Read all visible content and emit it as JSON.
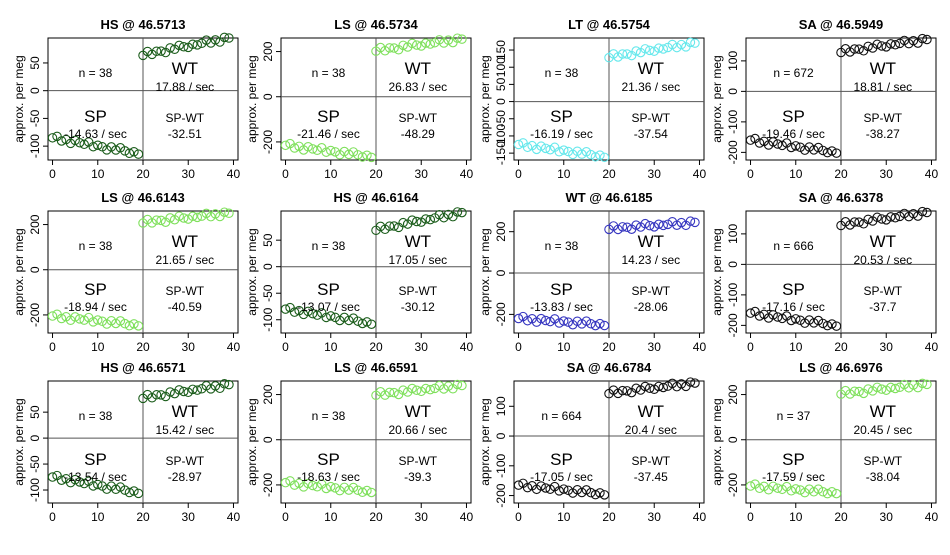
{
  "figure": {
    "shared": {
      "ylabel": "approx. per meg",
      "x_ticks": [
        0,
        10,
        20,
        30,
        40
      ],
      "xlim": [
        -1,
        41
      ],
      "sp_label": "SP",
      "wt_label": "WT",
      "diff_label": "SP-WT",
      "rate_unit": " / sec",
      "n_prefix": "n = ",
      "point_style": "open circles",
      "grid": "crosshair at x=20 and y=0"
    },
    "chart_data": [
      {
        "type": "scatter",
        "title": "HS @ 46.5713",
        "n": "38",
        "sp_rate": "-14.63",
        "wt_rate": "17.88",
        "diff": "-32.51",
        "color": "#1a5c1a",
        "ylim": [
          -125,
          95
        ],
        "yticks": [
          -100,
          -50,
          0,
          50
        ],
        "sp_start": -85,
        "sp_end": -113,
        "wt_start": 65,
        "wt_end": 95
      },
      {
        "type": "scatter",
        "title": "LS @ 46.5734",
        "n": "38",
        "sp_rate": "-21.46",
        "wt_rate": "26.83",
        "diff": "-48.29",
        "color": "#7fe05c",
        "ylim": [
          -280,
          260
        ],
        "yticks": [
          -200,
          0,
          200
        ],
        "sp_start": -215,
        "sp_end": -265,
        "wt_start": 205,
        "wt_end": 255
      },
      {
        "type": "scatter",
        "title": "LT @ 46.5754",
        "n": "38",
        "sp_rate": "-16.19",
        "wt_rate": "21.36",
        "diff": "-37.54",
        "color": "#66e8ec",
        "ylim": [
          -170,
          185
        ],
        "yticks": [
          -150,
          -100,
          -50,
          0,
          50,
          100,
          150
        ],
        "sp_start": -125,
        "sp_end": -160,
        "wt_start": 130,
        "wt_end": 170
      },
      {
        "type": "scatter",
        "title": "SA @ 46.5949",
        "n": "672",
        "sp_rate": "-19.46",
        "wt_rate": "18.81",
        "diff": "-38.27",
        "color": "#111111",
        "ylim": [
          -225,
          175
        ],
        "yticks": [
          -200,
          -100,
          0,
          100
        ],
        "sp_start": -160,
        "sp_end": -200,
        "wt_start": 130,
        "wt_end": 170
      },
      {
        "type": "scatter",
        "title": "LS @ 46.6143",
        "n": "38",
        "sp_rate": "-18.94",
        "wt_rate": "21.65",
        "diff": "-40.59",
        "color": "#7fe05c",
        "ylim": [
          -280,
          260
        ],
        "yticks": [
          -200,
          0,
          200
        ],
        "sp_start": -205,
        "sp_end": -245,
        "wt_start": 210,
        "wt_end": 250
      },
      {
        "type": "scatter",
        "title": "HS @ 46.6164",
        "n": "38",
        "sp_rate": "-13.07",
        "wt_rate": "17.05",
        "diff": "-30.12",
        "color": "#1a5c1a",
        "ylim": [
          -125,
          105
        ],
        "yticks": [
          -100,
          -50,
          0,
          50
        ],
        "sp_start": -80,
        "sp_end": -107,
        "wt_start": 70,
        "wt_end": 102
      },
      {
        "type": "scatter",
        "title": "WT @ 46.6185",
        "n": "38",
        "sp_rate": "-13.83",
        "wt_rate": "14.23",
        "diff": "-28.06",
        "color": "#3636c0",
        "ylim": [
          -290,
          300
        ],
        "yticks": [
          -200,
          0,
          200
        ],
        "sp_start": -220,
        "sp_end": -250,
        "wt_start": 215,
        "wt_end": 245
      },
      {
        "type": "scatter",
        "title": "SA @ 46.6378",
        "n": "666",
        "sp_rate": "-17.16",
        "wt_rate": "20.53",
        "diff": "-37.7",
        "color": "#111111",
        "ylim": [
          -225,
          175
        ],
        "yticks": [
          -200,
          -100,
          0,
          100
        ],
        "sp_start": -160,
        "sp_end": -200,
        "wt_start": 130,
        "wt_end": 170
      },
      {
        "type": "scatter",
        "title": "HS @ 46.6571",
        "n": "38",
        "sp_rate": "-13.54",
        "wt_rate": "15.42",
        "diff": "-28.97",
        "color": "#1a5c1a",
        "ylim": [
          -125,
          110
        ],
        "yticks": [
          -100,
          -50,
          0,
          50
        ],
        "sp_start": -75,
        "sp_end": -105,
        "wt_start": 78,
        "wt_end": 103
      },
      {
        "type": "scatter",
        "title": "LS @ 46.6591",
        "n": "38",
        "sp_rate": "-18.63",
        "wt_rate": "20.66",
        "diff": "-39.3",
        "color": "#7fe05c",
        "ylim": [
          -280,
          260
        ],
        "yticks": [
          -200,
          0,
          200
        ],
        "sp_start": -190,
        "sp_end": -230,
        "wt_start": 200,
        "wt_end": 240
      },
      {
        "type": "scatter",
        "title": "SA @ 46.6784",
        "n": "664",
        "sp_rate": "-17.05",
        "wt_rate": "20.4",
        "diff": "-37.45",
        "color": "#111111",
        "ylim": [
          -225,
          185
        ],
        "yticks": [
          -200,
          -100,
          0,
          100
        ],
        "sp_start": -165,
        "sp_end": -195,
        "wt_start": 145,
        "wt_end": 178
      },
      {
        "type": "scatter",
        "title": "LS @ 46.6976",
        "n": "37",
        "sp_rate": "-17.59",
        "wt_rate": "20.45",
        "diff": "-38.04",
        "color": "#7fe05c",
        "ylim": [
          -280,
          260
        ],
        "yticks": [
          -200,
          0,
          200
        ],
        "sp_start": -205,
        "sp_end": -235,
        "wt_start": 205,
        "wt_end": 245
      }
    ]
  }
}
